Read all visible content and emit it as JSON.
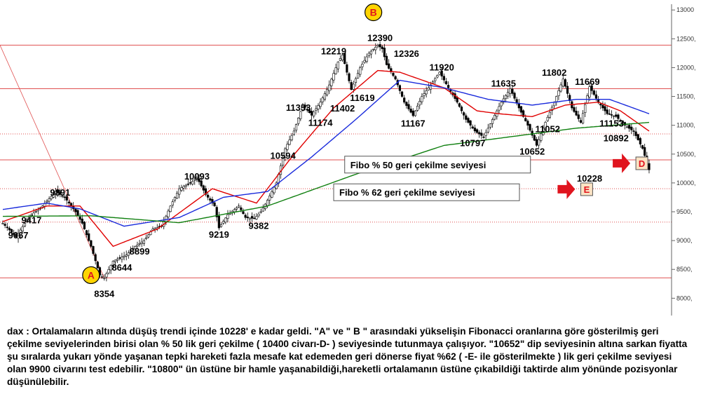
{
  "colors": {
    "background": "#ffffff",
    "candle_up": "#ffffff",
    "candle_down": "#000000",
    "ma_fast": "#e00000",
    "ma_mid": "#1a2bdc",
    "ma_slow": "#108010",
    "horizontal": "#e05050",
    "arrow": "#e0141e",
    "marker_circle": "#ffd400"
  },
  "chart_data": {
    "type": "candlestick",
    "instrument": "dax",
    "ylim": [
      7700,
      13100
    ],
    "y_ticks": [
      8000,
      8500,
      9000,
      9500,
      10000,
      10500,
      11000,
      11500,
      12000,
      12500,
      13000
    ],
    "y_tick_labels": [
      "8000,",
      "8500,",
      "9000,",
      "9500,",
      "10000,",
      "10500,",
      "11000,",
      "11500,",
      "12000,",
      "12500,",
      "13000"
    ],
    "series_bar_count": 200,
    "anchors": [
      [
        0,
        9300
      ],
      [
        6,
        9067
      ],
      [
        12,
        9417
      ],
      [
        18,
        9600
      ],
      [
        24,
        9850
      ],
      [
        28,
        9750
      ],
      [
        33,
        9500
      ],
      [
        36,
        9300
      ],
      [
        40,
        8900
      ],
      [
        44,
        8400
      ],
      [
        46,
        8354
      ],
      [
        50,
        8644
      ],
      [
        56,
        8750
      ],
      [
        60,
        8899
      ],
      [
        64,
        9000
      ],
      [
        68,
        9200
      ],
      [
        72,
        9250
      ],
      [
        76,
        9600
      ],
      [
        80,
        9900
      ],
      [
        85,
        10000
      ],
      [
        88,
        10093
      ],
      [
        92,
        9800
      ],
      [
        96,
        9600
      ],
      [
        98,
        9219
      ],
      [
        102,
        9450
      ],
      [
        107,
        9600
      ],
      [
        110,
        9400
      ],
      [
        114,
        9382
      ],
      [
        117,
        9500
      ],
      [
        120,
        9700
      ],
      [
        124,
        10000
      ],
      [
        128,
        10594
      ],
      [
        132,
        10900
      ],
      [
        136,
        11353
      ],
      [
        140,
        11174
      ],
      [
        144,
        11402
      ],
      [
        148,
        11700
      ],
      [
        152,
        12100
      ],
      [
        154,
        12219
      ],
      [
        158,
        11619
      ],
      [
        162,
        12000
      ],
      [
        166,
        12250
      ],
      [
        170,
        12390
      ],
      [
        172,
        12326
      ],
      [
        174,
        12050
      ],
      [
        178,
        11800
      ],
      [
        182,
        11400
      ],
      [
        186,
        11167
      ],
      [
        190,
        11500
      ],
      [
        194,
        11700
      ],
      [
        198,
        11920
      ],
      [
        202,
        11650
      ],
      [
        206,
        11400
      ],
      [
        210,
        11100
      ],
      [
        214,
        10900
      ],
      [
        218,
        10797
      ],
      [
        222,
        11100
      ],
      [
        226,
        11400
      ],
      [
        230,
        11635
      ],
      [
        234,
        11300
      ],
      [
        238,
        11000
      ],
      [
        242,
        10652
      ],
      [
        246,
        11052
      ],
      [
        250,
        11400
      ],
      [
        254,
        11802
      ],
      [
        258,
        11300
      ],
      [
        262,
        11050
      ],
      [
        266,
        11669
      ],
      [
        270,
        11400
      ],
      [
        274,
        11200
      ],
      [
        278,
        11153
      ],
      [
        282,
        11000
      ],
      [
        286,
        10892
      ],
      [
        290,
        10600
      ],
      [
        293,
        10228
      ]
    ],
    "moving_averages": [
      {
        "color": "#e00000",
        "values": [
          [
            0,
            9330
          ],
          [
            20,
            9600
          ],
          [
            35,
            9600
          ],
          [
            50,
            8900
          ],
          [
            70,
            9200
          ],
          [
            95,
            9900
          ],
          [
            115,
            9650
          ],
          [
            130,
            10400
          ],
          [
            150,
            11300
          ],
          [
            170,
            11950
          ],
          [
            180,
            11920
          ],
          [
            200,
            11650
          ],
          [
            215,
            11250
          ],
          [
            225,
            11200
          ],
          [
            240,
            11150
          ],
          [
            255,
            11350
          ],
          [
            270,
            11400
          ],
          [
            280,
            11250
          ],
          [
            293,
            10900
          ]
        ]
      },
      {
        "color": "#1a2bdc",
        "values": [
          [
            0,
            9540
          ],
          [
            20,
            9650
          ],
          [
            35,
            9550
          ],
          [
            55,
            9250
          ],
          [
            80,
            9400
          ],
          [
            100,
            9750
          ],
          [
            120,
            9850
          ],
          [
            140,
            10450
          ],
          [
            160,
            11100
          ],
          [
            180,
            11780
          ],
          [
            200,
            11650
          ],
          [
            220,
            11450
          ],
          [
            240,
            11350
          ],
          [
            260,
            11450
          ],
          [
            275,
            11450
          ],
          [
            293,
            11200
          ]
        ]
      },
      {
        "color": "#108010",
        "values": [
          [
            0,
            9420
          ],
          [
            40,
            9430
          ],
          [
            80,
            9310
          ],
          [
            120,
            9600
          ],
          [
            160,
            10150
          ],
          [
            200,
            10650
          ],
          [
            240,
            10850
          ],
          [
            260,
            10950
          ],
          [
            293,
            11050
          ]
        ]
      }
    ],
    "price_labels": [
      {
        "text": "9067",
        "x": 7,
        "y": 9040
      },
      {
        "text": "9417",
        "x": 13,
        "y": 9300
      },
      {
        "text": "9891",
        "x": 26,
        "y": 9780
      },
      {
        "text": "8354",
        "x": 46,
        "y": 8020
      },
      {
        "text": "8644",
        "x": 54,
        "y": 8480
      },
      {
        "text": "8899",
        "x": 62,
        "y": 8760
      },
      {
        "text": "10093",
        "x": 88,
        "y": 10060
      },
      {
        "text": "9219",
        "x": 98,
        "y": 9050
      },
      {
        "text": "9382",
        "x": 116,
        "y": 9200
      },
      {
        "text": "10594",
        "x": 127,
        "y": 10420
      },
      {
        "text": "11353",
        "x": 134,
        "y": 11250
      },
      {
        "text": "11174",
        "x": 144,
        "y": 10990
      },
      {
        "text": "11402",
        "x": 154,
        "y": 11240
      },
      {
        "text": "12219",
        "x": 150,
        "y": 12230
      },
      {
        "text": "11619",
        "x": 163,
        "y": 11420
      },
      {
        "text": "12390",
        "x": 171,
        "y": 12460
      },
      {
        "text": "12326",
        "x": 183,
        "y": 12190
      },
      {
        "text": "11167",
        "x": 186,
        "y": 10980
      },
      {
        "text": "11920",
        "x": 199,
        "y": 11950
      },
      {
        "text": "10797",
        "x": 213,
        "y": 10640
      },
      {
        "text": "11635",
        "x": 227,
        "y": 11670
      },
      {
        "text": "10652",
        "x": 240,
        "y": 10490
      },
      {
        "text": "11052",
        "x": 247,
        "y": 10880
      },
      {
        "text": "11802",
        "x": 250,
        "y": 11860
      },
      {
        "text": "11669",
        "x": 265,
        "y": 11700
      },
      {
        "text": "11153",
        "x": 276,
        "y": 10980
      },
      {
        "text": "10892",
        "x": 278,
        "y": 10720
      },
      {
        "text": "10228",
        "x": 266,
        "y": 10020
      }
    ],
    "horizontal_levels": [
      {
        "y": 8354,
        "style": "solid"
      },
      {
        "y": 9320,
        "style": "dotted"
      },
      {
        "y": 9900,
        "style": "dotted"
      },
      {
        "y": 10400,
        "style": "solid"
      },
      {
        "y": 10850,
        "style": "dotted"
      },
      {
        "y": 11635,
        "style": "solid"
      },
      {
        "y": 12390,
        "style": "solid"
      }
    ],
    "markers": [
      {
        "text": "A",
        "x": 40,
        "y": 8400
      },
      {
        "text": "B",
        "x": 168,
        "y": 12960
      }
    ],
    "boxes": [
      {
        "text": "Fibo % 50 geri çekilme seviyesi",
        "x": 155,
        "y": 10330
      },
      {
        "text": "Fibo % 62 geri çekilme seviyesi",
        "x": 150,
        "y": 9850
      }
    ],
    "letter_tags": [
      {
        "text": "D",
        "x": 287,
        "y": 10340
      },
      {
        "text": "E",
        "x": 262,
        "y": 9890
      }
    ]
  },
  "commentary": "dax : Ortalamaların altında düşüş trendi içinde 10228' e kadar geldi. \"A\" ve \" B \" arasındaki yükselişin Fibonacci oranlarına göre gösterilmiş geri çekilme seviyelerinden birisi olan % 50 lik geri çekilme ( 10400 civarı-D- ) seviyesinde tutunmaya çalışıyor. \"10652\" dip seviyesinin altına sarkan fiyatta şu sıralarda yukarı yönde yaşanan tepki hareketi fazla mesafe kat edemeden geri dönerse fiyat %62 ( -E- ile gösterilmekte ) lik geri çekilme seviyesi olan 9900 civarını test edebilir. \"10800\" ün üstüne bir hamle yaşanabildiği,hareketli ortalamanın üstüne çıkabildiği taktirde alım yönünde pozisyonlar düşünülebilir."
}
